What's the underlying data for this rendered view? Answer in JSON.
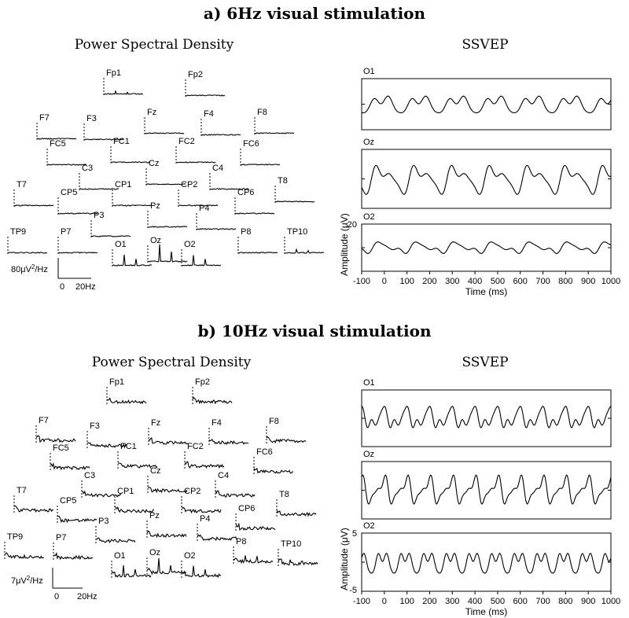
{
  "panels": [
    {
      "title": "a) 6Hz visual stimulation",
      "psd_title": "Power Spectral Density",
      "ssvep_title": "SSVEP",
      "psd_scale": {
        "y_prefix": "80μV",
        "y_sup": "2",
        "y_suffix": "/Hz",
        "x_start": "0",
        "x_end": "20Hz"
      },
      "channels": [
        "Fp1",
        "Fp2",
        "F7",
        "F3",
        "Fz",
        "F4",
        "F8",
        "FC5",
        "FC1",
        "FC2",
        "FC6",
        "T7",
        "C3",
        "Cz",
        "C4",
        "T8",
        "CP5",
        "CP1",
        "CP2",
        "CP6",
        "P3",
        "Pz",
        "P4",
        "TP9",
        "P7",
        "P8",
        "TP10",
        "O1",
        "Oz",
        "O2"
      ],
      "psd_peaks": {
        "Fp1": 0.15,
        "O1": 0.55,
        "Oz": 0.9,
        "O2": 0.55,
        "TP10": 0.2
      },
      "ssvep_channels": [
        "O1",
        "Oz",
        "O2"
      ],
      "ylabel": "Amplitude (μV)",
      "xlabel": "Time (ms)",
      "y_tick_top": "20",
      "y_tick_bottom": "",
      "x_ticks": [
        "-100",
        "0",
        "100",
        "200",
        "300",
        "400",
        "500",
        "600",
        "700",
        "800",
        "900",
        "1000"
      ]
    },
    {
      "title": "b) 10Hz visual stimulation",
      "psd_title": "Power Spectral Density",
      "ssvep_title": "SSVEP",
      "psd_scale": {
        "y_prefix": "7μV",
        "y_sup": "2",
        "y_suffix": "/Hz",
        "x_start": "0",
        "x_end": "20Hz"
      },
      "channels": [
        "Fp1",
        "Fp2",
        "F7",
        "F3",
        "Fz",
        "F4",
        "F8",
        "FC5",
        "FC1",
        "FC2",
        "FC6",
        "T7",
        "C3",
        "Cz",
        "C4",
        "T8",
        "CP5",
        "CP1",
        "CP2",
        "CP6",
        "P3",
        "Pz",
        "P4",
        "TP9",
        "P7",
        "P8",
        "TP10",
        "O1",
        "Oz",
        "O2"
      ],
      "psd_peaks": {
        "O1": 0.5,
        "Oz": 0.75,
        "O2": 0.55,
        "P8": 0.35,
        "TP10": 0.3
      },
      "ssvep_channels": [
        "O1",
        "Oz",
        "O2"
      ],
      "ylabel": "Amplitude (μV)",
      "xlabel": "Time (ms)",
      "y_tick_top": "5",
      "y_tick_bottom": "-5",
      "x_ticks": [
        "-100",
        "0",
        "100",
        "200",
        "300",
        "400",
        "500",
        "600",
        "700",
        "800",
        "900",
        "1000"
      ]
    }
  ],
  "chart_data": [
    {
      "type": "line",
      "title": "a) 6Hz visual stimulation",
      "xlabel": "Time (ms)",
      "ylabel": "Amplitude (μV)",
      "xlim": [
        -100,
        1000
      ],
      "ylim": [
        -20,
        20
      ],
      "stimulation_hz": 6,
      "series": [
        {
          "name": "O1",
          "amplitude": 9
        },
        {
          "name": "Oz",
          "amplitude": 12
        },
        {
          "name": "O2",
          "amplitude": 6
        }
      ]
    },
    {
      "type": "line",
      "title": "b) 10Hz visual stimulation",
      "xlabel": "Time (ms)",
      "ylabel": "Amplitude (μV)",
      "xlim": [
        -100,
        1000
      ],
      "ylim": [
        -5,
        5
      ],
      "stimulation_hz": 10,
      "series": [
        {
          "name": "O1",
          "amplitude": 2.5
        },
        {
          "name": "Oz",
          "amplitude": 3
        },
        {
          "name": "O2",
          "amplitude": 2.5
        }
      ]
    }
  ]
}
